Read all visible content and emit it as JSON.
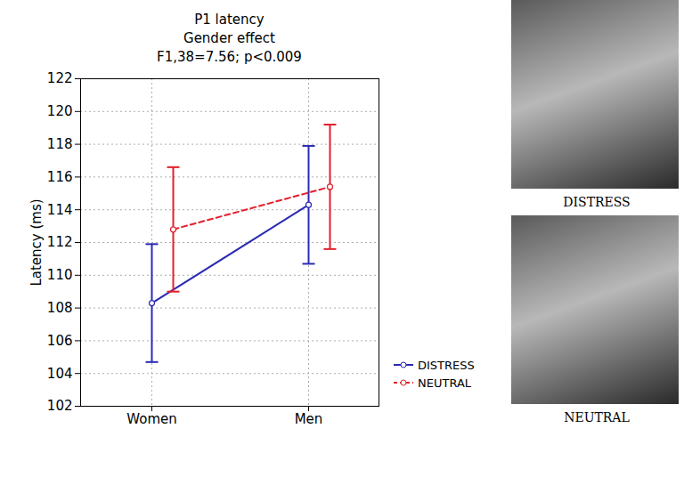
{
  "chart_data": {
    "type": "line",
    "title": "P1 latency",
    "subtitle": [
      "Gender effect",
      "F1,38=7.56; p<0.009"
    ],
    "categories": [
      "Women",
      "Men"
    ],
    "series": [
      {
        "name": "DISTRESS",
        "color": "#2a2ab4",
        "line_style": "solid",
        "marker": "circle",
        "values": [
          108.3,
          114.3
        ],
        "error_low": [
          104.7,
          110.7
        ],
        "error_high": [
          111.9,
          117.9
        ]
      },
      {
        "name": "NEUTRAL",
        "color": "#e3202a",
        "line_style": "dashed",
        "marker": "circle",
        "values": [
          112.8,
          115.4
        ],
        "error_low": [
          109.0,
          111.6
        ],
        "error_high": [
          116.6,
          119.2
        ]
      }
    ],
    "y_label": "Latency (ms)",
    "ylim": [
      102,
      122
    ],
    "yticks": [
      102,
      104,
      106,
      108,
      110,
      112,
      114,
      116,
      118,
      120,
      122
    ],
    "grid": true,
    "legend": "right",
    "image_captions": [
      "DISTRESS",
      "NEUTRAL"
    ]
  }
}
